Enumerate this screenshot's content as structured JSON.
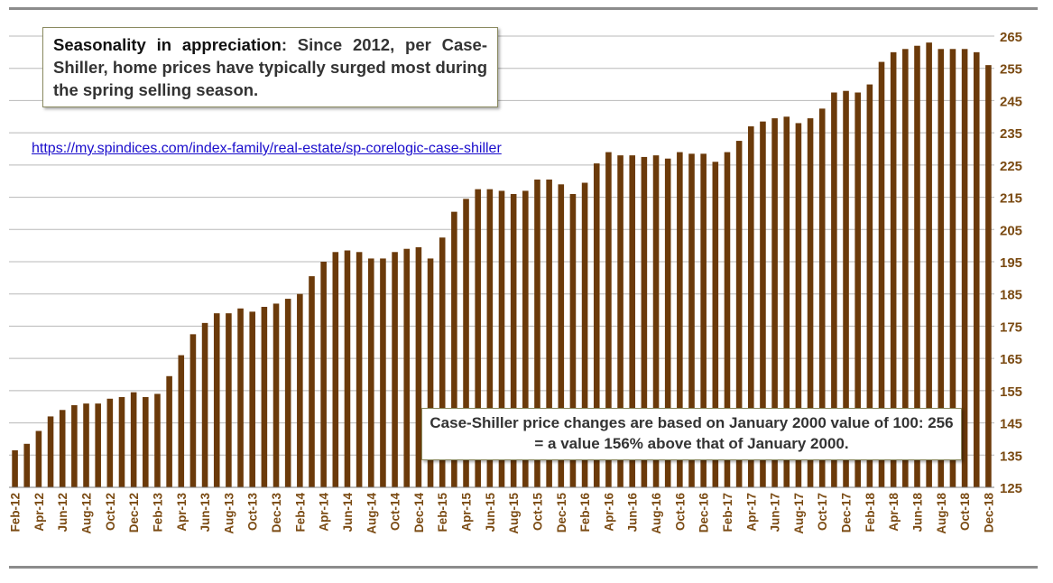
{
  "annotation_top": {
    "lead": "Seasonality in appreciation",
    "body": ": Since 2012, per Case-Shiller, home prices have typically surged most during the spring selling season."
  },
  "link_text": "https://my.spindices.com/index-family/real-estate/sp-corelogic-case-shiller",
  "annotation_bottom": "Case-Shiller price changes are based on January 2000 value of 100: 256 = a value 156% above that of January 2000.",
  "colors": {
    "bar": "#6b3a0a",
    "tick_label": "#7a4a12",
    "grid": "#b8b8b8",
    "rule": "#8c8c8c"
  },
  "chart_data": {
    "type": "bar",
    "title": "",
    "xlabel": "",
    "ylabel": "",
    "ylim": [
      125,
      265
    ],
    "y_ticks": [
      125,
      135,
      145,
      155,
      165,
      175,
      185,
      195,
      205,
      215,
      225,
      235,
      245,
      255,
      265
    ],
    "y_axis_position": "right",
    "grid": true,
    "legend": "none",
    "categories": [
      "Feb-12",
      "Mar-12",
      "Apr-12",
      "May-12",
      "Jun-12",
      "Jul-12",
      "Aug-12",
      "Sep-12",
      "Oct-12",
      "Nov-12",
      "Dec-12",
      "Jan-13",
      "Feb-13",
      "Mar-13",
      "Apr-13",
      "May-13",
      "Jun-13",
      "Jul-13",
      "Aug-13",
      "Sep-13",
      "Oct-13",
      "Nov-13",
      "Dec-13",
      "Jan-14",
      "Feb-14",
      "Mar-14",
      "Apr-14",
      "May-14",
      "Jun-14",
      "Jul-14",
      "Aug-14",
      "Sep-14",
      "Oct-14",
      "Nov-14",
      "Dec-14",
      "Jan-15",
      "Feb-15",
      "Mar-15",
      "Apr-15",
      "May-15",
      "Jun-15",
      "Jul-15",
      "Aug-15",
      "Sep-15",
      "Oct-15",
      "Nov-15",
      "Dec-15",
      "Jan-16",
      "Feb-16",
      "Mar-16",
      "Apr-16",
      "May-16",
      "Jun-16",
      "Jul-16",
      "Aug-16",
      "Sep-16",
      "Oct-16",
      "Nov-16",
      "Dec-16",
      "Jan-17",
      "Feb-17",
      "Mar-17",
      "Apr-17",
      "May-17",
      "Jun-17",
      "Jul-17",
      "Aug-17",
      "Sep-17",
      "Oct-17",
      "Nov-17",
      "Dec-17",
      "Jan-18",
      "Feb-18",
      "Mar-18",
      "Apr-18",
      "May-18",
      "Jun-18",
      "Jul-18",
      "Aug-18",
      "Sep-18",
      "Oct-18",
      "Nov-18",
      "Dec-18"
    ],
    "x_tick_labels": [
      "Feb-12",
      "Apr-12",
      "Jun-12",
      "Aug-12",
      "Oct-12",
      "Dec-12",
      "Feb-13",
      "Apr-13",
      "Jun-13",
      "Aug-13",
      "Oct-13",
      "Dec-13",
      "Feb-14",
      "Apr-14",
      "Jun-14",
      "Aug-14",
      "Oct-14",
      "Dec-14",
      "Feb-15",
      "Apr-15",
      "Jun-15",
      "Aug-15",
      "Oct-15",
      "Dec-15",
      "Feb-16",
      "Apr-16",
      "Jun-16",
      "Aug-16",
      "Oct-16",
      "Dec-16",
      "Feb-17",
      "Apr-17",
      "Jun-17",
      "Aug-17",
      "Oct-17",
      "Dec-17",
      "Feb-18",
      "Apr-18",
      "Jun-18",
      "Aug-18",
      "Oct-18",
      "Dec-18"
    ],
    "values": [
      136.5,
      138.5,
      142.5,
      147,
      149,
      150.5,
      151,
      151,
      152.5,
      153,
      154.5,
      153,
      154,
      159.5,
      166,
      172.5,
      176,
      179,
      179,
      180.5,
      179.5,
      181,
      182,
      183.5,
      185,
      190.5,
      195,
      198,
      198.5,
      198,
      196,
      196,
      198,
      199,
      199.5,
      196,
      202.5,
      210.5,
      214.5,
      217.5,
      217.5,
      217,
      216,
      217,
      220.5,
      220.5,
      219,
      216,
      219.5,
      225.5,
      229,
      228,
      228,
      227.5,
      228,
      227,
      229,
      228.5,
      228.5,
      226,
      229,
      232.5,
      237,
      238.5,
      239.5,
      240,
      238,
      239.5,
      242.5,
      247.5,
      248,
      247.5,
      250,
      257,
      260,
      261,
      262,
      263,
      261,
      261,
      261,
      260,
      256
    ]
  }
}
